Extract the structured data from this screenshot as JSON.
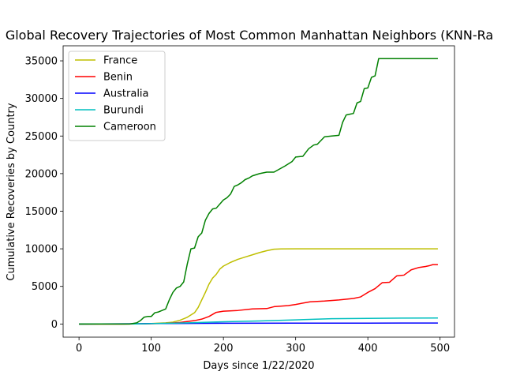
{
  "chart_data": {
    "type": "line",
    "title": "Global Recovery Trajectories of Most Common Manhattan Neighbors (KNN-Ra",
    "xlabel": "Days since 1/22/2020",
    "ylabel": "Cumulative Recoveries by Country",
    "xlim": [
      -22,
      520
    ],
    "ylim": [
      -1750,
      37000
    ],
    "xticks": [
      0,
      100,
      200,
      300,
      400,
      500
    ],
    "yticks": [
      0,
      5000,
      10000,
      15000,
      20000,
      25000,
      30000,
      35000
    ],
    "grid": false,
    "legend_position": "top-left",
    "series": [
      {
        "name": "France",
        "color": "#bfbf00",
        "x": [
          0,
          60,
          80,
          100,
          120,
          130,
          140,
          150,
          160,
          165,
          170,
          175,
          180,
          185,
          190,
          195,
          200,
          210,
          220,
          230,
          240,
          250,
          260,
          270,
          280,
          300,
          350,
          400,
          450,
          497
        ],
        "y": [
          0,
          0,
          20,
          60,
          150,
          250,
          500,
          900,
          1500,
          2200,
          3200,
          4200,
          5300,
          6100,
          6600,
          7300,
          7700,
          8200,
          8600,
          8900,
          9200,
          9500,
          9750,
          9950,
          9990,
          10000,
          10000,
          10000,
          10000,
          10000
        ]
      },
      {
        "name": "Benin",
        "color": "#ff0000",
        "x": [
          0,
          60,
          80,
          100,
          120,
          140,
          160,
          170,
          180,
          190,
          200,
          220,
          240,
          260,
          270,
          290,
          300,
          320,
          340,
          360,
          380,
          390,
          400,
          410,
          420,
          430,
          440,
          450,
          460,
          470,
          480,
          485,
          490,
          497
        ],
        "y": [
          0,
          0,
          10,
          30,
          80,
          200,
          450,
          650,
          1000,
          1550,
          1700,
          1800,
          2000,
          2050,
          2300,
          2450,
          2600,
          2950,
          3050,
          3200,
          3400,
          3600,
          4200,
          4700,
          5500,
          5550,
          6400,
          6500,
          7200,
          7500,
          7650,
          7750,
          7900,
          7900
        ]
      },
      {
        "name": "Australia",
        "color": "#0000ff",
        "x": [
          0,
          80,
          100,
          150,
          200,
          300,
          400,
          497
        ],
        "y": [
          0,
          30,
          60,
          80,
          100,
          110,
          120,
          130
        ]
      },
      {
        "name": "Burundi",
        "color": "#00bfbf",
        "x": [
          0,
          80,
          100,
          150,
          200,
          250,
          300,
          350,
          400,
          450,
          497
        ],
        "y": [
          0,
          10,
          50,
          150,
          300,
          400,
          550,
          700,
          750,
          780,
          800
        ]
      },
      {
        "name": "Cameroon",
        "color": "#008000",
        "x": [
          0,
          70,
          80,
          85,
          90,
          95,
          100,
          105,
          110,
          115,
          120,
          125,
          130,
          135,
          140,
          145,
          150,
          155,
          160,
          165,
          170,
          175,
          180,
          185,
          190,
          200,
          205,
          210,
          215,
          220,
          225,
          230,
          235,
          240,
          250,
          260,
          270,
          285,
          295,
          300,
          310,
          318,
          325,
          330,
          340,
          350,
          360,
          365,
          370,
          375,
          380,
          385,
          390,
          395,
          400,
          405,
          410,
          415,
          440,
          470,
          497
        ],
        "y": [
          0,
          0,
          150,
          450,
          900,
          1000,
          1000,
          1500,
          1600,
          1800,
          2000,
          3200,
          4200,
          4800,
          5000,
          5600,
          8000,
          10000,
          10100,
          11600,
          12100,
          13800,
          14700,
          15300,
          15400,
          16500,
          16800,
          17300,
          18300,
          18500,
          18800,
          19200,
          19400,
          19700,
          20000,
          20200,
          20200,
          21000,
          21600,
          22200,
          22300,
          23300,
          23800,
          23900,
          24900,
          25000,
          25100,
          26800,
          27800,
          27900,
          28000,
          29400,
          29600,
          31300,
          31400,
          32800,
          33000,
          35300,
          35300,
          35300,
          35300
        ]
      }
    ]
  }
}
